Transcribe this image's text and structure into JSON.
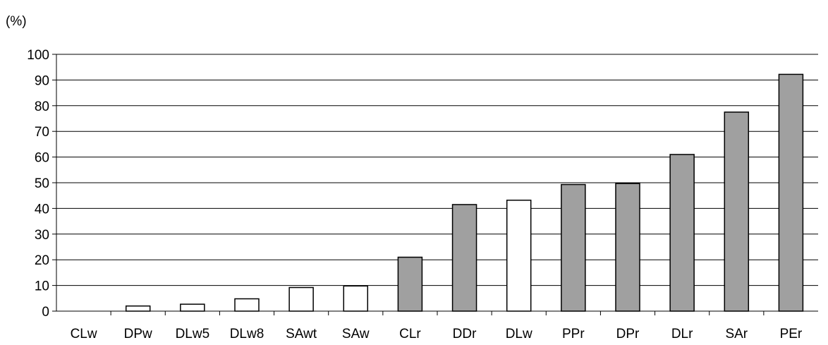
{
  "chart_data": {
    "type": "bar",
    "unit_label": "(%)",
    "categories": [
      "CLw",
      "DPw",
      "DLw5",
      "DLw8",
      "SAwt",
      "SAw",
      "CLr",
      "DDr",
      "DLw",
      "PPr",
      "DPr",
      "DLr",
      "SAr",
      "PEr"
    ],
    "values": [
      0,
      2,
      2.7,
      4.8,
      9.2,
      9.8,
      21,
      41.5,
      43.2,
      49.3,
      49.7,
      61,
      77.5,
      92.2
    ],
    "bar_colors": [
      "#ffffff",
      "#ffffff",
      "#ffffff",
      "#ffffff",
      "#ffffff",
      "#ffffff",
      "#a0a0a0",
      "#a0a0a0",
      "#ffffff",
      "#a0a0a0",
      "#a0a0a0",
      "#a0a0a0",
      "#a0a0a0",
      "#a0a0a0"
    ],
    "yticks": [
      0,
      10,
      20,
      30,
      40,
      50,
      60,
      70,
      80,
      90,
      100
    ],
    "ylim": [
      0,
      100
    ],
    "grid": true,
    "legend": "none"
  }
}
